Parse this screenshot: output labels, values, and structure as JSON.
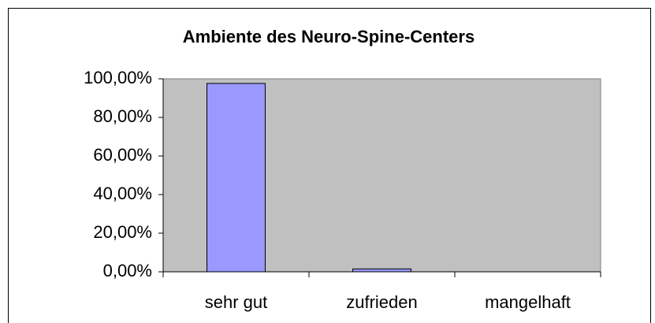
{
  "chart_data": {
    "type": "bar",
    "title": "Ambiente des Neuro-Spine-Centers",
    "categories": [
      "sehr gut",
      "zufrieden",
      "mangelhaft"
    ],
    "values": [
      97.6,
      1.5,
      0
    ],
    "color": "#9999ff",
    "ylim": [
      0,
      100
    ],
    "yticks": [
      {
        "value": 0,
        "label": "0,00%"
      },
      {
        "value": 20,
        "label": "20,00%"
      },
      {
        "value": 40,
        "label": "40,00%"
      },
      {
        "value": 60,
        "label": "60,00%"
      },
      {
        "value": 80,
        "label": "80,00%"
      },
      {
        "value": 100,
        "label": "100,00%"
      }
    ],
    "grid": false
  }
}
